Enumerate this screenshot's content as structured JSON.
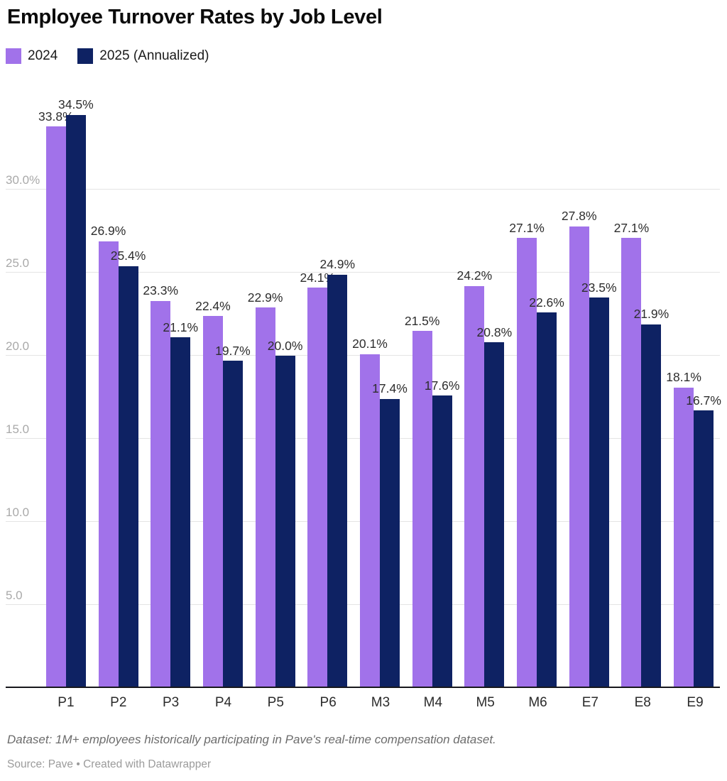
{
  "header": {
    "title": "Employee Turnover Rates by Job Level"
  },
  "legend": [
    {
      "label": "2024",
      "color": "#a172ea"
    },
    {
      "label": "2025 (Annualized)",
      "color": "#0e2263"
    }
  ],
  "chart_data": {
    "type": "bar",
    "title": "Employee Turnover Rates by Job Level",
    "categories": [
      "P1",
      "P2",
      "P3",
      "P4",
      "P5",
      "P6",
      "M3",
      "M4",
      "M5",
      "M6",
      "E7",
      "E8",
      "E9"
    ],
    "series": [
      {
        "name": "2024",
        "color": "#a172ea",
        "values": [
          33.8,
          26.9,
          23.3,
          22.4,
          22.9,
          24.1,
          20.1,
          21.5,
          24.2,
          27.1,
          27.8,
          27.1,
          18.1
        ]
      },
      {
        "name": "2025 (Annualized)",
        "color": "#0e2263",
        "values": [
          34.5,
          25.4,
          21.1,
          19.7,
          20.0,
          24.9,
          17.4,
          17.6,
          20.8,
          22.6,
          23.5,
          21.9,
          16.7
        ]
      }
    ],
    "xlabel": "",
    "ylabel": "",
    "ylim": [
      0,
      36.25
    ],
    "yticks": [
      {
        "value": 5,
        "label": "5.0"
      },
      {
        "value": 10,
        "label": "10.0"
      },
      {
        "value": 15,
        "label": "15.0"
      },
      {
        "value": 20,
        "label": "20.0"
      },
      {
        "value": 25,
        "label": "25.0"
      },
      {
        "value": 30,
        "label": "30.0%"
      }
    ],
    "grid": "horizontal",
    "legend_position": "top-left",
    "value_label_format": "one-decimal-percent",
    "colors": {
      "gridline": "#e4e4e4",
      "ytick_text": "#a9a9a9",
      "value_text": "#2d2d2d",
      "axis_line": "#17171c"
    }
  },
  "footer": {
    "note": "Dataset: 1M+ employees historically participating in Pave's real-time compensation dataset.",
    "source": "Source: Pave • Created with Datawrapper"
  }
}
